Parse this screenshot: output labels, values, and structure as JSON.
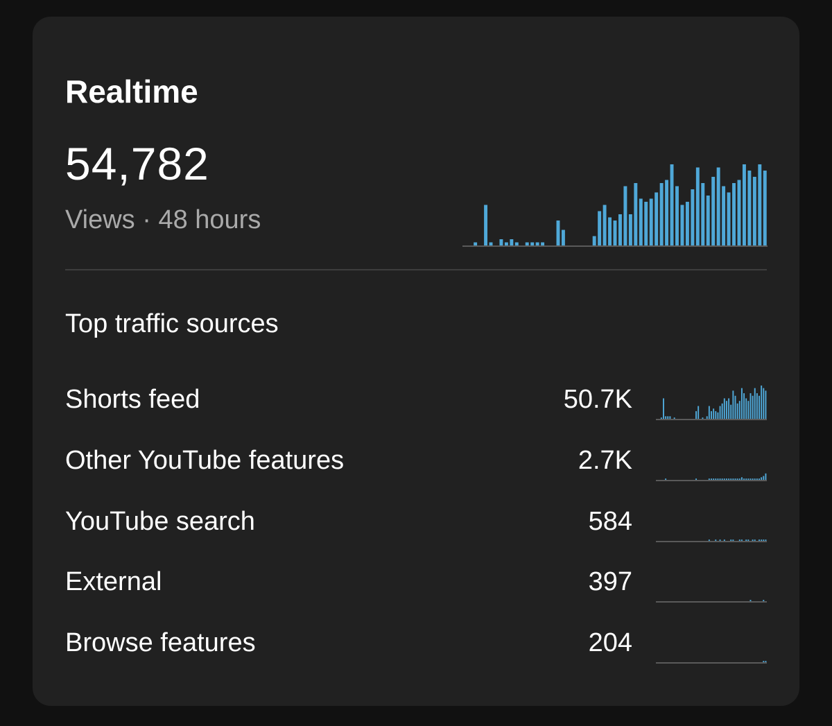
{
  "card": {
    "title": "Realtime",
    "views_total": "54,782",
    "views_caption": "Views · 48 hours"
  },
  "colors": {
    "bar": "#4fa8d8",
    "baseline": "#5a5a5a",
    "background": "#111111",
    "card": "#212121",
    "muted_text": "#aaaaaa"
  },
  "chart_data": [
    {
      "type": "bar",
      "name": "views-48h",
      "values": [
        0,
        0,
        1,
        0,
        13,
        1,
        0,
        2,
        1,
        2,
        1,
        0,
        1,
        1,
        1,
        1,
        0,
        0,
        8,
        5,
        0,
        0,
        0,
        0,
        0,
        3,
        11,
        13,
        9,
        8,
        10,
        19,
        10,
        20,
        15,
        14,
        15,
        17,
        20,
        21,
        26,
        19,
        13,
        14,
        18,
        25,
        20,
        16,
        22,
        25,
        19,
        17,
        20,
        21,
        26,
        24,
        22,
        26,
        24
      ],
      "ylim": [
        0,
        28
      ]
    }
  ],
  "traffic": {
    "title": "Top traffic sources",
    "sources": [
      {
        "label": "Shorts feed",
        "value": "50.7K",
        "spark": [
          0,
          0,
          1,
          16,
          2,
          2,
          2,
          0,
          1,
          0,
          0,
          0,
          0,
          0,
          0,
          0,
          0,
          0,
          6,
          10,
          0,
          1,
          0,
          2,
          10,
          6,
          8,
          6,
          5,
          10,
          12,
          16,
          14,
          16,
          11,
          22,
          18,
          12,
          14,
          24,
          20,
          16,
          14,
          20,
          18,
          24,
          20,
          18,
          26,
          24,
          22
        ]
      },
      {
        "label": "Other YouTube features",
        "value": "2.7K",
        "spark": [
          0,
          0,
          0,
          0,
          1,
          0,
          0,
          0,
          0,
          0,
          0,
          0,
          0,
          0,
          0,
          0,
          0,
          0,
          1,
          0,
          0,
          0,
          0,
          0,
          1,
          1,
          1,
          1,
          1,
          1,
          1,
          1,
          1,
          1,
          1,
          1,
          1,
          1,
          1,
          2,
          1,
          1,
          1,
          1,
          1,
          1,
          1,
          1,
          2,
          3,
          5
        ]
      },
      {
        "label": "YouTube search",
        "value": "584",
        "spark": [
          0,
          0,
          0,
          0,
          0,
          0,
          0,
          0,
          0,
          0,
          0,
          0,
          0,
          0,
          0,
          0,
          0,
          0,
          0,
          0,
          0,
          0,
          0,
          0,
          1,
          0,
          0,
          1,
          0,
          1,
          0,
          1,
          0,
          0,
          1,
          1,
          0,
          0,
          1,
          1,
          0,
          1,
          1,
          0,
          1,
          1,
          0,
          1,
          1,
          1,
          1
        ]
      },
      {
        "label": "External",
        "value": "397",
        "spark": [
          0,
          0,
          0,
          0,
          0,
          0,
          0,
          0,
          0,
          0,
          0,
          0,
          0,
          0,
          0,
          0,
          0,
          0,
          0,
          0,
          0,
          0,
          0,
          0,
          0,
          0,
          0,
          0,
          0,
          0,
          0,
          0,
          0,
          0,
          0,
          0,
          0,
          0,
          0,
          0,
          0,
          0,
          0,
          1,
          0,
          0,
          0,
          0,
          0,
          1,
          0
        ]
      },
      {
        "label": "Browse features",
        "value": "204",
        "spark": [
          0,
          0,
          0,
          0,
          0,
          0,
          0,
          0,
          0,
          0,
          0,
          0,
          0,
          0,
          0,
          0,
          0,
          0,
          0,
          0,
          0,
          0,
          0,
          0,
          0,
          0,
          0,
          0,
          0,
          0,
          0,
          0,
          0,
          0,
          0,
          0,
          0,
          0,
          0,
          0,
          0,
          0,
          0,
          0,
          0,
          0,
          0,
          0,
          0,
          1,
          1
        ]
      }
    ]
  }
}
